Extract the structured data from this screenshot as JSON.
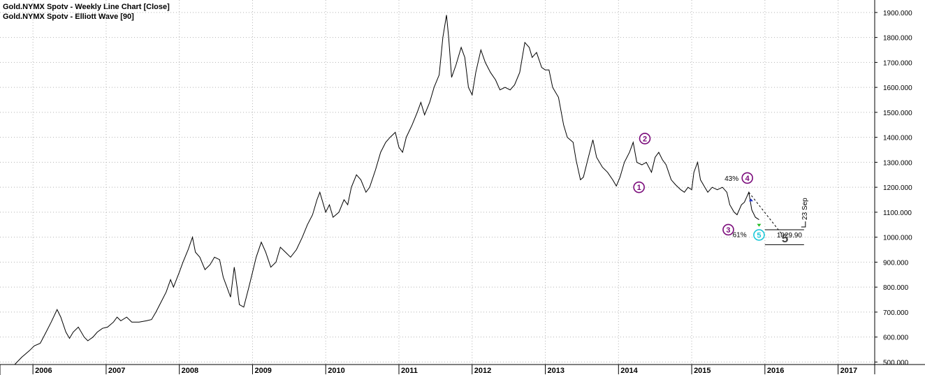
{
  "header": {
    "title_line1": "Gold.NYMX Spotv - Weekly Line Chart [Close]",
    "title_line2": "Gold.NYMX Spotv - Elliott Wave [90]"
  },
  "colors": {
    "price_line": "#000000",
    "grid": "#b4b4b4",
    "wave_primary": "#7a0a7a",
    "wave_current": "#19c7d8",
    "arrow_down": "#22bb22",
    "arrow_up": "#2233cc",
    "target_label": "#444444"
  },
  "chart_data": {
    "type": "line",
    "title": "Gold.NYMX Spotv - Weekly Line Chart [Close]",
    "xlabel": "",
    "ylabel": "",
    "xlim": [
      2005.55,
      2017.5
    ],
    "ylim": [
      490,
      1950
    ],
    "y_scale": "linear",
    "grid": true,
    "x_ticks": [
      "2006",
      "2007",
      "2008",
      "2009",
      "2010",
      "2011",
      "2012",
      "2013",
      "2014",
      "2015",
      "2016",
      "2017"
    ],
    "y_ticks": [
      "500.000",
      "600.000",
      "700.000",
      "800.000",
      "900.000",
      "1000.000",
      "1100.000",
      "1200.000",
      "1300.000",
      "1400.000",
      "1500.000",
      "1600.000",
      "1700.000",
      "1800.000",
      "1900.000"
    ],
    "series": [
      {
        "values": [
          [
            2005.75,
            490
          ],
          [
            2005.85,
            520
          ],
          [
            2005.95,
            545
          ],
          [
            2006.02,
            565
          ],
          [
            2006.1,
            575
          ],
          [
            2006.18,
            620
          ],
          [
            2006.25,
            660
          ],
          [
            2006.33,
            710
          ],
          [
            2006.38,
            680
          ],
          [
            2006.45,
            620
          ],
          [
            2006.5,
            595
          ],
          [
            2006.55,
            620
          ],
          [
            2006.62,
            640
          ],
          [
            2006.7,
            600
          ],
          [
            2006.75,
            585
          ],
          [
            2006.82,
            600
          ],
          [
            2006.88,
            620
          ],
          [
            2006.95,
            635
          ],
          [
            2007.02,
            640
          ],
          [
            2007.1,
            660
          ],
          [
            2007.15,
            680
          ],
          [
            2007.2,
            665
          ],
          [
            2007.28,
            680
          ],
          [
            2007.35,
            660
          ],
          [
            2007.45,
            660
          ],
          [
            2007.55,
            665
          ],
          [
            2007.62,
            670
          ],
          [
            2007.68,
            700
          ],
          [
            2007.75,
            740
          ],
          [
            2007.82,
            780
          ],
          [
            2007.88,
            830
          ],
          [
            2007.92,
            800
          ],
          [
            2008.0,
            860
          ],
          [
            2008.05,
            900
          ],
          [
            2008.12,
            950
          ],
          [
            2008.18,
            1000
          ],
          [
            2008.22,
            940
          ],
          [
            2008.28,
            920
          ],
          [
            2008.35,
            870
          ],
          [
            2008.42,
            890
          ],
          [
            2008.48,
            920
          ],
          [
            2008.55,
            910
          ],
          [
            2008.6,
            840
          ],
          [
            2008.65,
            800
          ],
          [
            2008.7,
            760
          ],
          [
            2008.75,
            880
          ],
          [
            2008.78,
            820
          ],
          [
            2008.82,
            730
          ],
          [
            2008.88,
            720
          ],
          [
            2008.95,
            800
          ],
          [
            2009.0,
            860
          ],
          [
            2009.05,
            920
          ],
          [
            2009.12,
            980
          ],
          [
            2009.18,
            940
          ],
          [
            2009.25,
            880
          ],
          [
            2009.32,
            900
          ],
          [
            2009.38,
            960
          ],
          [
            2009.45,
            940
          ],
          [
            2009.52,
            920
          ],
          [
            2009.6,
            950
          ],
          [
            2009.68,
            1000
          ],
          [
            2009.75,
            1050
          ],
          [
            2009.82,
            1090
          ],
          [
            2009.88,
            1150
          ],
          [
            2009.92,
            1180
          ],
          [
            2010.0,
            1100
          ],
          [
            2010.05,
            1130
          ],
          [
            2010.1,
            1080
          ],
          [
            2010.18,
            1100
          ],
          [
            2010.25,
            1150
          ],
          [
            2010.3,
            1130
          ],
          [
            2010.35,
            1200
          ],
          [
            2010.42,
            1250
          ],
          [
            2010.48,
            1230
          ],
          [
            2010.55,
            1180
          ],
          [
            2010.6,
            1200
          ],
          [
            2010.68,
            1270
          ],
          [
            2010.75,
            1340
          ],
          [
            2010.82,
            1380
          ],
          [
            2010.88,
            1400
          ],
          [
            2010.95,
            1420
          ],
          [
            2011.0,
            1360
          ],
          [
            2011.05,
            1340
          ],
          [
            2011.1,
            1400
          ],
          [
            2011.18,
            1450
          ],
          [
            2011.25,
            1500
          ],
          [
            2011.3,
            1540
          ],
          [
            2011.35,
            1490
          ],
          [
            2011.42,
            1540
          ],
          [
            2011.48,
            1600
          ],
          [
            2011.55,
            1650
          ],
          [
            2011.6,
            1800
          ],
          [
            2011.65,
            1890
          ],
          [
            2011.68,
            1800
          ],
          [
            2011.72,
            1640
          ],
          [
            2011.78,
            1690
          ],
          [
            2011.85,
            1760
          ],
          [
            2011.9,
            1720
          ],
          [
            2011.95,
            1600
          ],
          [
            2012.0,
            1570
          ],
          [
            2012.05,
            1660
          ],
          [
            2012.12,
            1750
          ],
          [
            2012.18,
            1700
          ],
          [
            2012.25,
            1660
          ],
          [
            2012.32,
            1630
          ],
          [
            2012.38,
            1590
          ],
          [
            2012.45,
            1600
          ],
          [
            2012.52,
            1590
          ],
          [
            2012.58,
            1610
          ],
          [
            2012.65,
            1660
          ],
          [
            2012.72,
            1780
          ],
          [
            2012.78,
            1760
          ],
          [
            2012.82,
            1720
          ],
          [
            2012.88,
            1740
          ],
          [
            2012.95,
            1680
          ],
          [
            2013.0,
            1670
          ],
          [
            2013.05,
            1670
          ],
          [
            2013.1,
            1600
          ],
          [
            2013.18,
            1560
          ],
          [
            2013.25,
            1450
          ],
          [
            2013.3,
            1400
          ],
          [
            2013.38,
            1380
          ],
          [
            2013.42,
            1310
          ],
          [
            2013.48,
            1230
          ],
          [
            2013.52,
            1240
          ],
          [
            2013.58,
            1310
          ],
          [
            2013.65,
            1390
          ],
          [
            2013.7,
            1320
          ],
          [
            2013.78,
            1280
          ],
          [
            2013.85,
            1260
          ],
          [
            2013.92,
            1230
          ],
          [
            2013.97,
            1205
          ],
          [
            2014.02,
            1240
          ],
          [
            2014.08,
            1300
          ],
          [
            2014.15,
            1340
          ],
          [
            2014.2,
            1380
          ],
          [
            2014.25,
            1300
          ],
          [
            2014.32,
            1290
          ],
          [
            2014.38,
            1300
          ],
          [
            2014.45,
            1260
          ],
          [
            2014.5,
            1320
          ],
          [
            2014.55,
            1340
          ],
          [
            2014.6,
            1310
          ],
          [
            2014.65,
            1290
          ],
          [
            2014.72,
            1230
          ],
          [
            2014.78,
            1210
          ],
          [
            2014.85,
            1190
          ],
          [
            2014.9,
            1180
          ],
          [
            2014.95,
            1200
          ],
          [
            2015.0,
            1190
          ],
          [
            2015.03,
            1260
          ],
          [
            2015.08,
            1300
          ],
          [
            2015.12,
            1230
          ],
          [
            2015.18,
            1200
          ],
          [
            2015.22,
            1180
          ],
          [
            2015.28,
            1200
          ],
          [
            2015.35,
            1190
          ],
          [
            2015.42,
            1200
          ],
          [
            2015.48,
            1180
          ],
          [
            2015.52,
            1130
          ],
          [
            2015.58,
            1100
          ],
          [
            2015.62,
            1090
          ],
          [
            2015.68,
            1130
          ],
          [
            2015.72,
            1140
          ],
          [
            2015.78,
            1180
          ],
          [
            2015.82,
            1110
          ],
          [
            2015.87,
            1080
          ],
          [
            2015.92,
            1070
          ]
        ]
      }
    ],
    "annotations": {
      "wave_labels": [
        {
          "label": "1",
          "x": 2014.28,
          "y": 1200,
          "level": "primary"
        },
        {
          "label": "2",
          "x": 2014.36,
          "y": 1395,
          "level": "primary"
        },
        {
          "label": "3",
          "x": 2015.5,
          "y": 1030,
          "level": "primary"
        },
        {
          "label": "4",
          "x": 2015.76,
          "y": 1237,
          "level": "primary"
        },
        {
          "label": "5",
          "x": 2015.92,
          "y": 1009,
          "level": "current"
        }
      ],
      "fib_labels": [
        {
          "text": "43%",
          "x": 2015.64,
          "y": 1225
        },
        {
          "text": "61%",
          "x": 2015.75,
          "y": 1001
        }
      ],
      "target_label": "5",
      "target_price": "1029.90",
      "target_date": "23 Sep"
    }
  }
}
